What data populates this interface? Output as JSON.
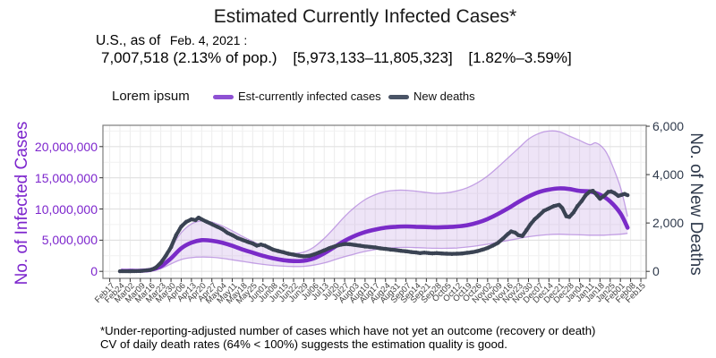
{
  "title": "Estimated Currently Infected Cases*",
  "subtitle": {
    "prefix": "U.S., as of",
    "date": "Feb. 4, 2021 :",
    "value": "7,007,518 (2.13% of pop.)",
    "ci_abs": "[5,973,133–11,805,323]",
    "ci_pct": "[1.82%–3.59%]"
  },
  "legend": {
    "note": "Lorem ipsum",
    "items": [
      {
        "label": "Est-currently infected cases",
        "color": "#8E51D3"
      },
      {
        "label": "New deaths",
        "color": "#4A5466"
      }
    ]
  },
  "axes": {
    "left": {
      "title": "No. of Infected Cases",
      "color": "#7D26CD",
      "tick_labels": [
        "0",
        "5,000,000",
        "10,000,000",
        "15,000,000",
        "20,000,000"
      ],
      "tick_values_millions": [
        0,
        5,
        10,
        15,
        20
      ],
      "minor_gridlines_millions": [
        2.5,
        7.5,
        12.5,
        17.5,
        22.5
      ]
    },
    "right": {
      "title": "No. of New Deaths",
      "color": "#2F3A4C",
      "tick_labels": [
        "0",
        "2,000",
        "4,000",
        "6,000"
      ],
      "tick_values": [
        0,
        2000,
        4000,
        6000
      ]
    },
    "x": {
      "labels": [
        "Feb17",
        "Feb24",
        "Mar02",
        "Mar09",
        "Mar16",
        "Mar23",
        "Mar30",
        "Apr06",
        "Apr13",
        "Apr20",
        "Apr27",
        "May04",
        "May11",
        "May18",
        "May25",
        "Jun01",
        "Jun08",
        "Jun15",
        "Jun22",
        "Jun29",
        "Jul06",
        "Jul13",
        "Jul20",
        "Jul27",
        "Aug03",
        "Aug10",
        "Aug17",
        "Aug24",
        "Aug31",
        "Sep07",
        "Sep14",
        "Sep21",
        "Sep28",
        "Oct05",
        "Oct12",
        "Oct19",
        "Oct26",
        "Nov02",
        "Nov09",
        "Nov16",
        "Nov23",
        "Nov30",
        "Dec07",
        "Dec14",
        "Dec21",
        "Dec28",
        "Jan04",
        "Jan11",
        "Jan18",
        "Jan25",
        "Feb01",
        "Feb08",
        "Feb15"
      ]
    }
  },
  "footnote": [
    "*Under-reporting-adjusted number of cases which have not yet an outcome (recovery or death)",
    "CV of daily death rates (64% < 100%) suggests the estimation quality is good."
  ],
  "chart_data": {
    "type": "line",
    "title": "Estimated Currently Infected Cases*",
    "x_unit": "weeks since Feb 17, 2020 (tick per week)",
    "left_axis_range_millions": [
      0,
      23.4
    ],
    "right_axis_range": [
      0,
      6000
    ],
    "grid": true,
    "legend_position": "top",
    "band_color": "#B284DC",
    "band_fill_opacity": 0.22,
    "series": [
      {
        "name": "Est-currently infected cases",
        "axis": "left",
        "unit": "millions of cases",
        "color": "#7A2BC8",
        "x": [
          1.2,
          2,
          3,
          4,
          5,
          6,
          7,
          8,
          9,
          10,
          11,
          12,
          13,
          14,
          15,
          16,
          17,
          18,
          19,
          20,
          21,
          22,
          23,
          24,
          25,
          26,
          27,
          28,
          29,
          30,
          31,
          32,
          33,
          34,
          35,
          36,
          37,
          38,
          39,
          40,
          41,
          42,
          43,
          44,
          45,
          46,
          47,
          48,
          49,
          50,
          50.7
        ],
        "values_millions": [
          0.08,
          0.08,
          0.1,
          0.25,
          0.8,
          2.1,
          3.7,
          4.6,
          5.0,
          4.9,
          4.6,
          4.1,
          3.5,
          3.0,
          2.5,
          2.1,
          1.8,
          1.65,
          1.7,
          2.1,
          2.9,
          3.9,
          4.9,
          5.7,
          6.3,
          6.7,
          7.0,
          7.15,
          7.2,
          7.15,
          7.1,
          7.05,
          7.1,
          7.2,
          7.4,
          7.8,
          8.4,
          9.2,
          10.1,
          11.1,
          12.0,
          12.7,
          13.1,
          13.3,
          13.2,
          12.9,
          12.8,
          12.3,
          11.2,
          9.3,
          7.0
        ]
      },
      {
        "name": "Estimation interval upper bound",
        "axis": "left",
        "unit": "millions of cases",
        "color": "#B284DC",
        "x": [
          1.2,
          2,
          3,
          4,
          5,
          6,
          7,
          8,
          9,
          10,
          11,
          12,
          13,
          14,
          15,
          16,
          17,
          18,
          19,
          20,
          21,
          22,
          23,
          24,
          25,
          26,
          27,
          28,
          29,
          30,
          31,
          32,
          33,
          34,
          35,
          36,
          37,
          38,
          39,
          40,
          41,
          42,
          43,
          44,
          45,
          46,
          47,
          47.6,
          48.4,
          49,
          50,
          50.7
        ],
        "values_millions": [
          0.12,
          0.12,
          0.18,
          0.45,
          1.5,
          3.8,
          6.2,
          7.6,
          8.1,
          7.9,
          7.3,
          6.5,
          5.6,
          4.8,
          4.1,
          3.5,
          3.1,
          2.9,
          3.1,
          3.9,
          5.3,
          7.0,
          8.8,
          10.3,
          11.5,
          12.3,
          12.8,
          13.0,
          13.0,
          12.85,
          12.65,
          12.5,
          12.6,
          12.9,
          13.4,
          14.2,
          15.3,
          16.7,
          18.2,
          19.7,
          21.2,
          22.1,
          22.5,
          22.4,
          21.7,
          21.0,
          20.3,
          20.6,
          19.6,
          17.8,
          13.5,
          8.8
        ]
      },
      {
        "name": "Estimation interval lower bound",
        "axis": "left",
        "unit": "millions of cases",
        "color": "#B284DC",
        "x": [
          1.2,
          2,
          3,
          4,
          5,
          6,
          7,
          8,
          9,
          10,
          11,
          12,
          13,
          14,
          15,
          16,
          17,
          18,
          19,
          20,
          21,
          22,
          23,
          24,
          25,
          26,
          27,
          28,
          29,
          30,
          31,
          32,
          33,
          34,
          35,
          36,
          37,
          38,
          39,
          40,
          41,
          42,
          43,
          44,
          45,
          46,
          47,
          47.6,
          48.4,
          49,
          50,
          50.7
        ],
        "values_millions": [
          0.04,
          0.04,
          0.06,
          0.12,
          0.45,
          1.2,
          1.9,
          2.2,
          2.3,
          2.25,
          2.1,
          1.85,
          1.6,
          1.35,
          1.12,
          0.95,
          0.83,
          0.78,
          0.8,
          1.0,
          1.35,
          1.85,
          2.35,
          2.8,
          3.2,
          3.5,
          3.7,
          3.8,
          3.85,
          3.8,
          3.75,
          3.7,
          3.7,
          3.75,
          3.9,
          4.1,
          4.35,
          4.65,
          4.95,
          5.25,
          5.55,
          5.75,
          5.9,
          5.95,
          5.9,
          5.85,
          5.8,
          5.8,
          5.8,
          5.85,
          5.95,
          6.1
        ]
      },
      {
        "name": "New deaths",
        "axis": "right",
        "unit": "deaths per day",
        "color": "#3A4353",
        "x": [
          1,
          2,
          3,
          4,
          4.5,
          5,
          5.5,
          6,
          6.5,
          7,
          7.5,
          8,
          8.4,
          8.7,
          9,
          9.5,
          10,
          10.5,
          11,
          11.5,
          12,
          12.5,
          13,
          13.5,
          14,
          14.4,
          14.8,
          15.2,
          15.6,
          16,
          16.5,
          17,
          17.5,
          18,
          18.5,
          19,
          19.5,
          20,
          20.5,
          21,
          21.5,
          22,
          22.5,
          23,
          23.5,
          24,
          24.5,
          25,
          25.5,
          26,
          26.5,
          27,
          27.5,
          28,
          28.5,
          29,
          29.5,
          30,
          30.4,
          30.8,
          31.2,
          31.6,
          32,
          32.5,
          33,
          33.5,
          34,
          34.5,
          35,
          35.5,
          36,
          36.5,
          37,
          37.5,
          38,
          38.5,
          39,
          39.3,
          39.7,
          40,
          40.4,
          40.8,
          41.2,
          41.6,
          42,
          42.5,
          43,
          43.5,
          44,
          44.3,
          44.7,
          45,
          45.4,
          45.8,
          46.2,
          46.6,
          47,
          47.3,
          47.7,
          48,
          48.4,
          48.8,
          49.1,
          49.4,
          49.8,
          50.1,
          50.4,
          50.7
        ],
        "values": [
          5,
          5,
          15,
          60,
          150,
          350,
          650,
          1000,
          1500,
          1850,
          2050,
          2150,
          2120,
          2220,
          2150,
          2050,
          1950,
          1850,
          1750,
          1600,
          1500,
          1380,
          1300,
          1220,
          1150,
          1060,
          1110,
          1060,
          980,
          900,
          840,
          790,
          730,
          690,
          650,
          620,
          640,
          700,
          780,
          870,
          960,
          1030,
          1090,
          1130,
          1120,
          1090,
          1060,
          1030,
          1010,
          990,
          950,
          930,
          900,
          880,
          850,
          830,
          800,
          780,
          755,
          775,
          760,
          745,
          755,
          740,
          730,
          720,
          730,
          740,
          765,
          795,
          835,
          895,
          965,
          1065,
          1175,
          1355,
          1550,
          1650,
          1600,
          1500,
          1460,
          1700,
          1950,
          2150,
          2300,
          2500,
          2600,
          2700,
          2750,
          2620,
          2280,
          2250,
          2430,
          2700,
          2900,
          3150,
          3300,
          3330,
          3150,
          3000,
          3120,
          3280,
          3300,
          3240,
          3120,
          3160,
          3200,
          3150
        ]
      }
    ]
  }
}
